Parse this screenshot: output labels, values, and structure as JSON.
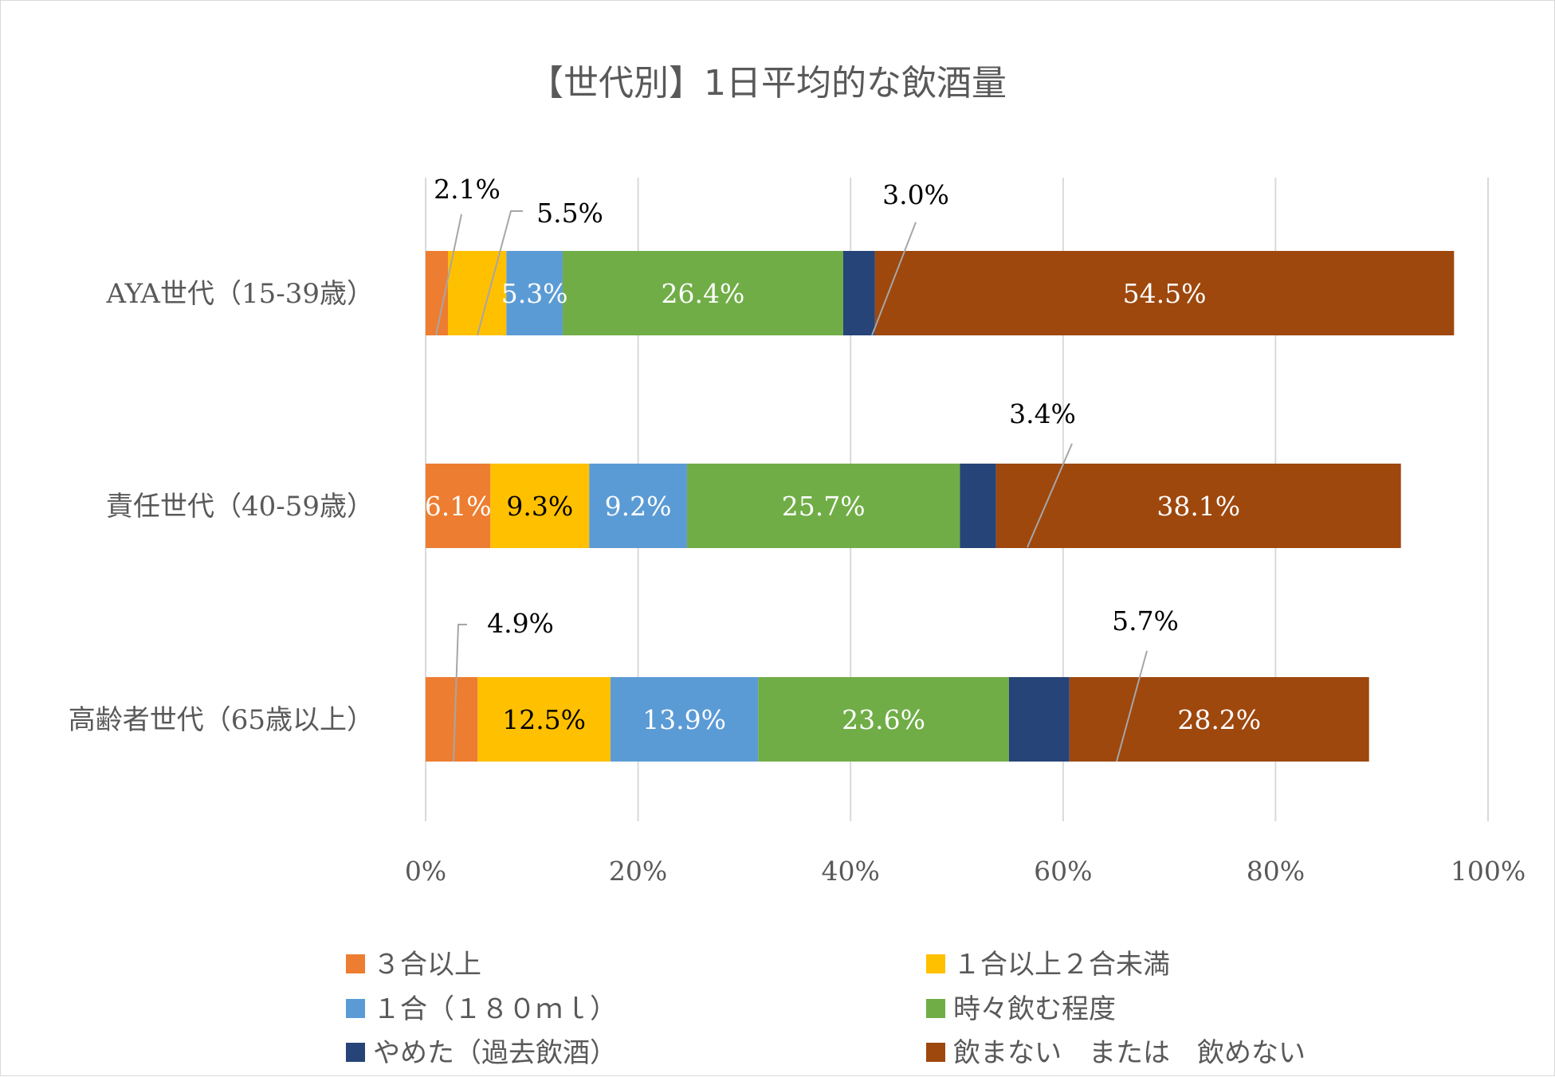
{
  "chart_data": {
    "type": "bar",
    "orientation": "horizontal",
    "stacked": "percent",
    "title": "【世代別】1日平均的な飲酒量",
    "categories": [
      "AYA世代（15-39歳）",
      "責任世代（40-59歳）",
      "高齢者世代（65歳以上）"
    ],
    "xlim": [
      0,
      100
    ],
    "x_ticks": [
      "0%",
      "20%",
      "40%",
      "60%",
      "80%",
      "100%"
    ],
    "grid": true,
    "legend_position": "bottom",
    "series": [
      {
        "name": "３合以上",
        "color": "#ED7D31",
        "values": [
          2.1,
          6.1,
          4.9
        ],
        "labels": [
          "2.1%",
          "6.1%",
          "4.9%"
        ]
      },
      {
        "name": "１合以上２合未満",
        "color": "#FFC000",
        "values": [
          5.5,
          9.3,
          12.5
        ],
        "labels": [
          "5.5%",
          "9.3%",
          "12.5%"
        ]
      },
      {
        "name": "１合（１８０ｍｌ）",
        "color": "#5B9BD5",
        "values": [
          5.3,
          9.2,
          13.9
        ],
        "labels": [
          "5.3%",
          "9.2%",
          "13.9%"
        ]
      },
      {
        "name": "時々飲む程度",
        "color": "#70AD47",
        "values": [
          26.4,
          25.7,
          23.6
        ],
        "labels": [
          "26.4%",
          "25.7%",
          "23.6%"
        ]
      },
      {
        "name": "やめた（過去飲酒）",
        "color": "#264478",
        "values": [
          3.0,
          3.4,
          5.7
        ],
        "labels": [
          "3.0%",
          "3.4%",
          "5.7%"
        ]
      },
      {
        "name": "飲まない　または　飲めない",
        "color": "#9E480E",
        "values": [
          54.5,
          38.1,
          28.2
        ],
        "labels": [
          "54.5%",
          "38.1%",
          "28.2%"
        ]
      }
    ]
  }
}
